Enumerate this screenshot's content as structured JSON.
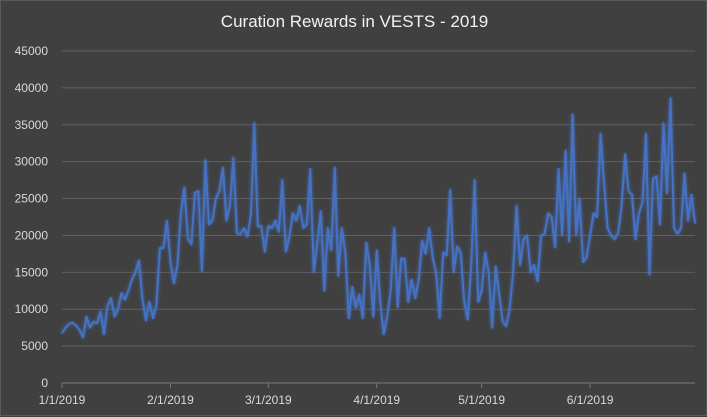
{
  "chart_data": {
    "type": "line",
    "title": "Curation Rewards in VESTS - 2019",
    "xlabel": "",
    "ylabel": "",
    "ylim": [
      0,
      45000
    ],
    "yticks": [
      0,
      5000,
      10000,
      15000,
      20000,
      25000,
      30000,
      35000,
      40000,
      45000
    ],
    "x_start": "1/1/2019",
    "x_end": "7/1/2019",
    "xtick_labels": [
      "1/1/2019",
      "2/1/2019",
      "3/1/2019",
      "4/1/2019",
      "5/1/2019",
      "6/1/2019"
    ],
    "grid": true,
    "legend": "none",
    "line_color": "#4472c4",
    "series": [
      {
        "values": [
          6800,
          7500,
          8000,
          8200,
          7800,
          7200,
          6200,
          9000,
          7500,
          8300,
          8100,
          9700,
          6600,
          10500,
          11500,
          9000,
          10000,
          12200,
          11300,
          12500,
          14000,
          15000,
          16600,
          11500,
          8500,
          11000,
          8800,
          10500,
          18300,
          18300,
          22000,
          16500,
          13500,
          16000,
          23000,
          26500,
          19500,
          18800,
          25800,
          26000,
          15200,
          30200,
          21500,
          22000,
          25000,
          26000,
          29200,
          22000,
          24000,
          30500,
          20300,
          20200,
          21000,
          19800,
          22800,
          35200,
          21200,
          21300,
          17800,
          21300,
          21000,
          22000,
          20500,
          27500,
          17800,
          19700,
          23000,
          22000,
          24000,
          21000,
          21500,
          29000,
          15000,
          19000,
          23300,
          12500,
          21000,
          18000,
          29200,
          14500,
          21000,
          17700,
          8800,
          13000,
          10200,
          12000,
          8800,
          19000,
          16000,
          9000,
          18000,
          11000,
          6600,
          9000,
          12500,
          21000,
          10300,
          16900,
          16800,
          11000,
          14000,
          11500,
          14000,
          19300,
          17500,
          21000,
          17000,
          14800,
          8800,
          17700,
          17300,
          26200,
          15000,
          18500,
          17700,
          11000,
          8600,
          16000,
          27500,
          11000,
          12500,
          17700,
          15000,
          7500,
          15800,
          12000,
          8300,
          7700,
          10000,
          15000,
          24000,
          16000,
          19500,
          20000,
          15000,
          16000,
          13800,
          20000,
          20200,
          23000,
          22500,
          18400,
          29000,
          20000,
          31500,
          19200,
          36400,
          20000,
          25000,
          16400,
          17000,
          20000,
          23000,
          22500,
          33800,
          27000,
          21000,
          20000,
          19500,
          20300,
          24000,
          31000,
          26000,
          25500,
          19500,
          23000,
          24500,
          33800,
          14700,
          27700,
          28000,
          21500,
          35200,
          25700,
          38600,
          21000,
          20200,
          21000,
          28400,
          22000,
          25500,
          21700
        ]
      }
    ]
  }
}
